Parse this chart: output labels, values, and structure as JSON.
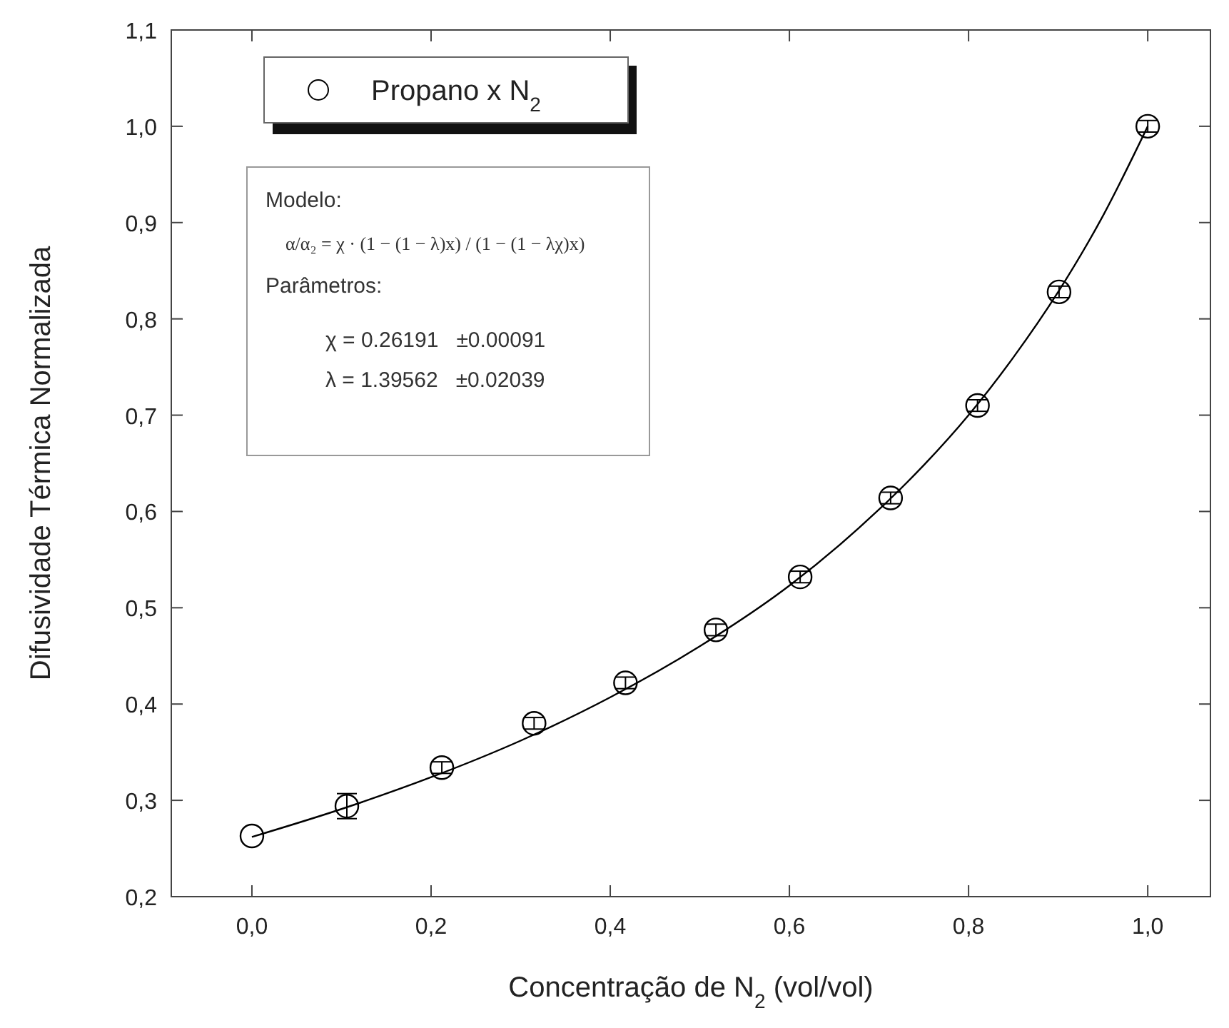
{
  "chart_data": {
    "type": "scatter",
    "xlabel": "Concentração de N$_{2}$  (vol/vol)",
    "ylabel": "Difusividade Térmica Normalizada",
    "xlim": [
      -0.09,
      1.07
    ],
    "ylim": [
      0.2,
      1.1
    ],
    "xticks": [
      {
        "value": 0,
        "label": "0,0"
      },
      {
        "value": 0.2,
        "label": "0,2"
      },
      {
        "value": 0.4,
        "label": "0,4"
      },
      {
        "value": 0.6,
        "label": "0,6"
      },
      {
        "value": 0.8,
        "label": "0,8"
      },
      {
        "value": 1,
        "label": "1,0"
      }
    ],
    "yticks": [
      {
        "value": 0.2,
        "label": "0,2"
      },
      {
        "value": 0.3,
        "label": "0,3"
      },
      {
        "value": 0.4,
        "label": "0,4"
      },
      {
        "value": 0.5,
        "label": "0,5"
      },
      {
        "value": 0.6,
        "label": "0,6"
      },
      {
        "value": 0.7,
        "label": "0,7"
      },
      {
        "value": 0.8,
        "label": "0,8"
      },
      {
        "value": 0.9,
        "label": "0,9"
      },
      {
        "value": 1,
        "label": "1,0"
      },
      {
        "value": 1.1,
        "label": "1,1"
      }
    ],
    "grid": false,
    "legend": "top left",
    "marker": "circle",
    "series": [
      {
        "name": "Propano x N$_{2}$",
        "color": "#000000",
        "x": [
          0,
          0.106,
          0.212,
          0.315,
          0.417,
          0.518,
          0.612,
          0.713,
          0.81,
          0.901,
          1
        ],
        "values": [
          0.263,
          0.294,
          0.334,
          0.38,
          0.422,
          0.477,
          0.532,
          0.614,
          0.71,
          0.828,
          1
        ],
        "errors": [
          null,
          0.013,
          0.006,
          0.006,
          0.006,
          0.006,
          0.006,
          0.006,
          0.006,
          0.006,
          0.006
        ]
      },
      {
        "type": "line",
        "color": "#000000",
        "line_style": "solid",
        "marker": "none",
        "x": [
          0,
          0.1,
          0.2,
          0.3,
          0.4,
          0.5,
          0.6,
          0.7,
          0.75,
          0.8,
          0.85,
          0.9,
          0.95,
          1
        ],
        "values": [
          0.262,
          0.291,
          0.324,
          0.362,
          0.407,
          0.46,
          0.523,
          0.602,
          0.648,
          0.7,
          0.76,
          0.828,
          0.907,
          1
        ]
      }
    ],
    "annotations": [
      "Modelo:",
      "α/α₂ = χ · (1 − (1 − λ)x) / (1 − (1 − λχ)x)",
      "Parâmetros:",
      "χ = 0.26191   ±0.00091",
      "λ = 1.39562   ±0.02039"
    ]
  }
}
